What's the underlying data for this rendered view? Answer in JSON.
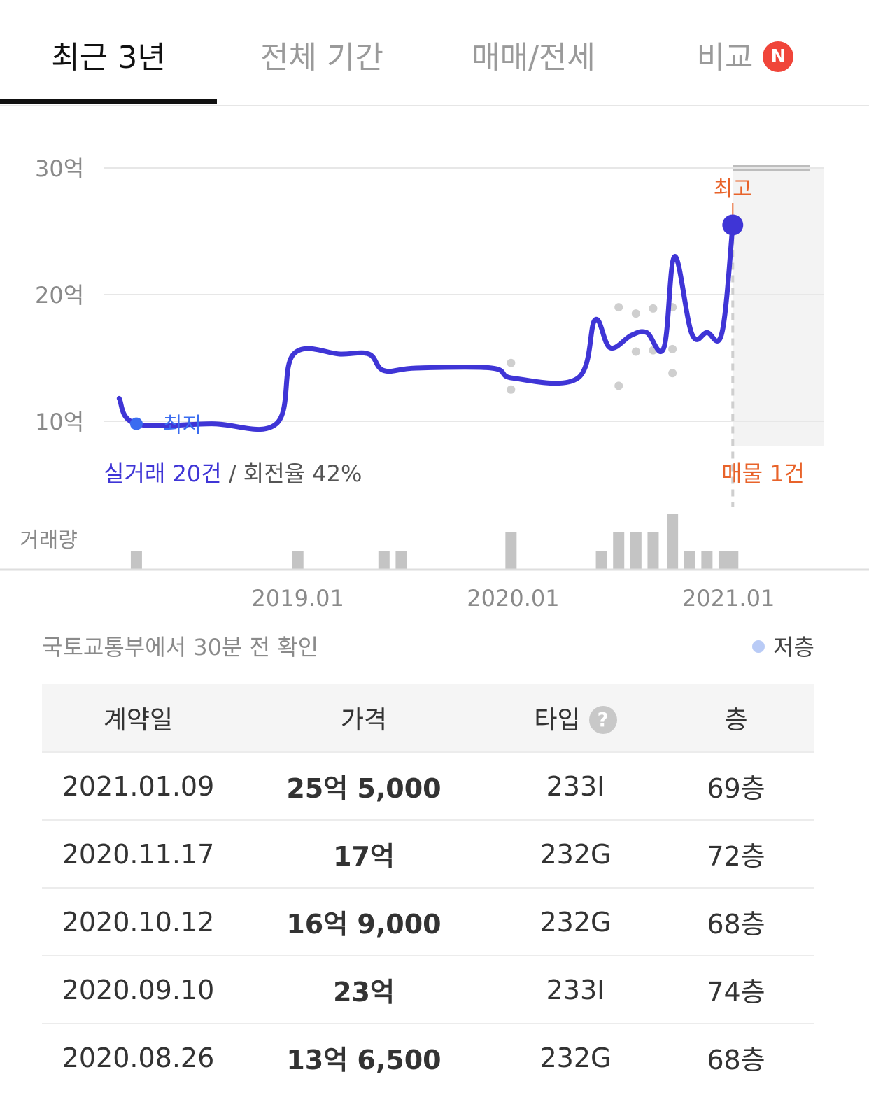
{
  "tabs": [
    {
      "label": "최근 3년",
      "active": true
    },
    {
      "label": "전체 기간",
      "active": false
    },
    {
      "label": "매매/전세",
      "active": false
    },
    {
      "label": "비교",
      "active": false,
      "badge": "N"
    }
  ],
  "chart_data": {
    "type": "line",
    "y_unit": "억",
    "y_ticks": [
      "30억",
      "20억",
      "10억"
    ],
    "y_tick_values": [
      30,
      20,
      10
    ],
    "x_ticks": [
      "2019.01",
      "2020.01",
      "2021.01"
    ],
    "series": [
      {
        "values": [
          [
            2018.17,
            11.8
          ],
          [
            2018.25,
            9.8
          ],
          [
            2018.6,
            9.8
          ],
          [
            2018.9,
            9.8
          ],
          [
            2018.98,
            15.3
          ],
          [
            2019.2,
            15.3
          ],
          [
            2019.33,
            15.3
          ],
          [
            2019.4,
            14.0
          ],
          [
            2019.55,
            14.2
          ],
          [
            2019.9,
            14.2
          ],
          [
            2020.0,
            13.4
          ],
          [
            2020.3,
            13.4
          ],
          [
            2020.38,
            18.0
          ],
          [
            2020.45,
            15.8
          ],
          [
            2020.55,
            16.8
          ],
          [
            2020.62,
            17.0
          ],
          [
            2020.7,
            15.8
          ],
          [
            2020.75,
            23.0
          ],
          [
            2020.83,
            16.9
          ],
          [
            2020.9,
            17.0
          ],
          [
            2020.97,
            17.0
          ],
          [
            2021.02,
            25.5
          ]
        ]
      }
    ],
    "scatter_points": [
      [
        2019.99,
        14.6
      ],
      [
        2019.99,
        12.5
      ],
      [
        2020.49,
        19.0
      ],
      [
        2020.49,
        12.8
      ],
      [
        2020.57,
        18.5
      ],
      [
        2020.57,
        15.5
      ],
      [
        2020.65,
        18.9
      ],
      [
        2020.65,
        15.6
      ],
      [
        2020.74,
        19.0
      ],
      [
        2020.74,
        15.7
      ],
      [
        2020.74,
        13.8
      ]
    ],
    "low_label": "최지",
    "low_point": [
      2018.25,
      9.8
    ],
    "high_label": "최고",
    "high_point": [
      2021.02,
      25.5
    ],
    "listing_range_max": 30,
    "volume_label": "거래량",
    "volume_unit_height": 1,
    "volume": [
      [
        2018.25,
        1
      ],
      [
        2019.0,
        1
      ],
      [
        2019.4,
        1
      ],
      [
        2019.48,
        1
      ],
      [
        2019.99,
        2
      ],
      [
        2020.41,
        1
      ],
      [
        2020.49,
        2
      ],
      [
        2020.57,
        2
      ],
      [
        2020.65,
        2
      ],
      [
        2020.74,
        3
      ],
      [
        2020.82,
        1
      ],
      [
        2020.9,
        1
      ],
      [
        2020.98,
        1
      ],
      [
        2021.02,
        1
      ]
    ],
    "summary_deals": "실거래 20건",
    "summary_sep": "/",
    "summary_turnover": "회전율 42%",
    "listing_label": "매물 1건",
    "colors": {
      "line": "#3f35d6",
      "high": "#e8632a",
      "low": "#3a6cf0",
      "scatter": "#cfcfcf",
      "bar": "#c4c4c4"
    }
  },
  "footnote": "국토교통부에서 30분 전 확인",
  "legend_label": "저층",
  "table": {
    "headers": [
      "계약일",
      "가격",
      "타입",
      "층"
    ],
    "help_icon": "?",
    "rows": [
      {
        "date": "2021.01.09",
        "price": "25억 5,000",
        "type": "233I",
        "floor": "69층"
      },
      {
        "date": "2020.11.17",
        "price": "17억",
        "type": "232G",
        "floor": "72층"
      },
      {
        "date": "2020.10.12",
        "price": "16억 9,000",
        "type": "232G",
        "floor": "68층"
      },
      {
        "date": "2020.09.10",
        "price": "23억",
        "type": "233I",
        "floor": "74층"
      },
      {
        "date": "2020.08.26",
        "price": "13억 6,500",
        "type": "232G",
        "floor": "68층"
      }
    ]
  }
}
